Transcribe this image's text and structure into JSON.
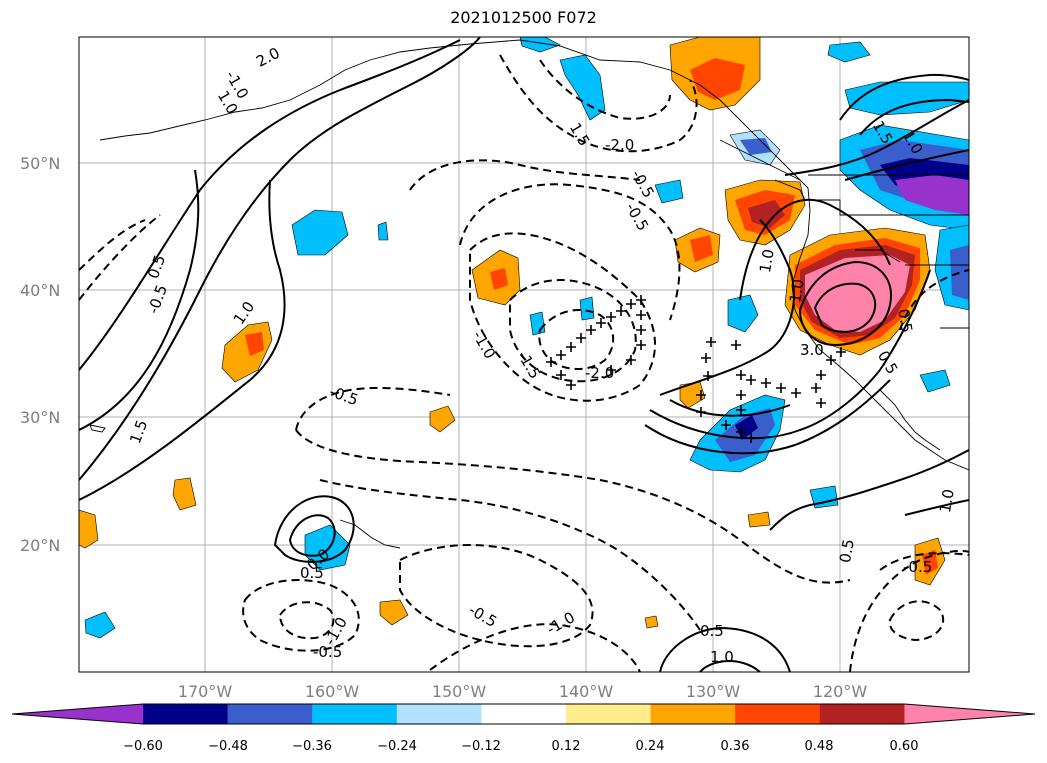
{
  "title": "2021012500 F072",
  "map": {
    "lat_labels": [
      "50°N",
      "40°N",
      "30°N",
      "20°N"
    ],
    "lon_labels": [
      "170°W",
      "160°W",
      "150°W",
      "140°W",
      "130°W",
      "120°W"
    ],
    "contour_labels": [
      "2.0",
      "1.0",
      "1.5",
      "-2.0",
      "-0.5",
      "0.5",
      "1.0",
      "-0.5",
      "1.0",
      "1.5",
      "-1.0",
      "-1.5",
      "-2.0",
      "1.0",
      "1.5",
      "1.0",
      "3.0",
      "0.5",
      "-0.5",
      "-1.0",
      "-0.5",
      "0.0",
      "0.5",
      "-1.0",
      "-0.5",
      "-0.5",
      "-1.0",
      "0.5",
      "1.0",
      "1.0",
      "0.5",
      "-0.5",
      "0.5"
    ]
  },
  "colorbar": {
    "tick_labels": [
      "−0.60",
      "−0.48",
      "−0.36",
      "−0.24",
      "−0.12",
      "0.12",
      "0.24",
      "0.36",
      "0.48",
      "0.60"
    ],
    "colors": [
      "#9932cc",
      "#00008b",
      "#3a5fcd",
      "#00bfff",
      "#b0e2ff",
      "#ffffff",
      "#ffec8b",
      "#ffa500",
      "#ff4500",
      "#b22222",
      "#ff82ab"
    ]
  }
}
